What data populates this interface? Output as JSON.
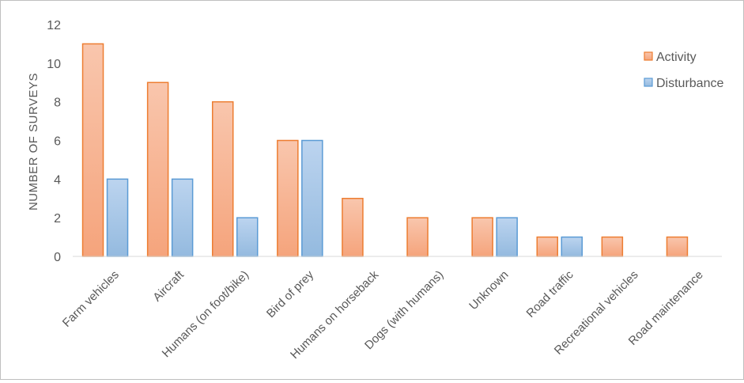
{
  "chart_data": {
    "type": "bar",
    "title": "",
    "xlabel": "",
    "ylabel": "NUMBER OF SURVEYS",
    "ylim": [
      0,
      12
    ],
    "yticks": [
      0,
      2,
      4,
      6,
      8,
      10,
      12
    ],
    "grid": false,
    "legend_position": "right",
    "categories": [
      "Farm vehicles",
      "Aircraft",
      "Humans (on foot/bike)",
      "Bird of prey",
      "Humans on horseback",
      "Dogs (with humans)",
      "Unknown",
      "Road traffic",
      "Recreational vehicles",
      "Road maintenance"
    ],
    "series": [
      {
        "name": "Activity",
        "values": [
          11,
          9,
          8,
          6,
          3,
          2,
          2,
          1,
          1,
          1
        ],
        "fill": "#f7b594",
        "stroke": "#ed7d31"
      },
      {
        "name": "Disturbance",
        "values": [
          4,
          4,
          2,
          6,
          0,
          0,
          2,
          1,
          0,
          0
        ],
        "fill": "#a9c8ea",
        "stroke": "#5b9bd5"
      }
    ]
  }
}
